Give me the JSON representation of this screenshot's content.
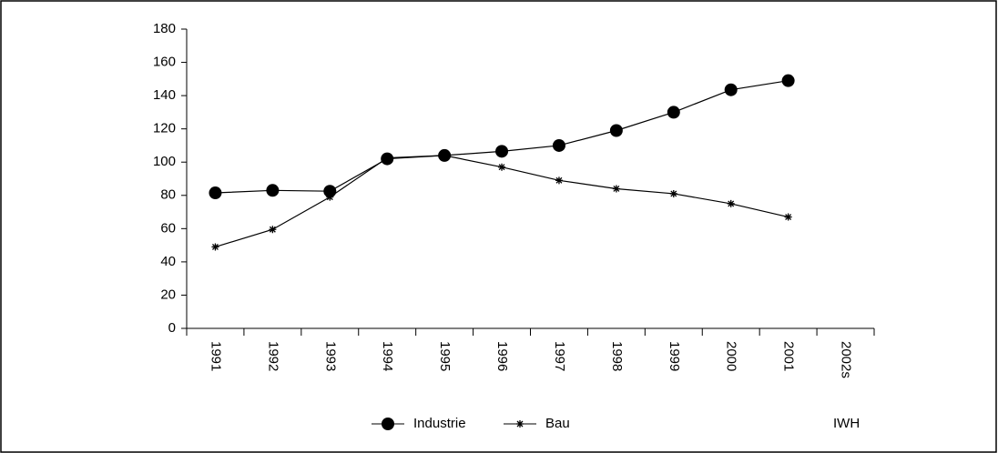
{
  "chart_data": {
    "type": "line",
    "categories": [
      "1991",
      "1992",
      "1993",
      "1994",
      "1995",
      "1996",
      "1997",
      "1998",
      "1999",
      "2000",
      "2001",
      "2002s"
    ],
    "series": [
      {
        "name": "Industrie",
        "color": "#000000",
        "marker": "circle",
        "values": [
          81.5,
          83,
          82.5,
          102,
          104,
          106.5,
          110,
          119,
          130,
          143.5,
          149,
          null
        ]
      },
      {
        "name": "Bau",
        "color": "#000000",
        "marker": "star",
        "values": [
          49,
          59.5,
          79,
          102.5,
          104,
          97,
          89,
          84,
          81,
          75,
          67,
          null
        ]
      }
    ],
    "ylim": [
      0,
      180
    ],
    "yticks": [
      0,
      20,
      40,
      60,
      80,
      100,
      120,
      140,
      160,
      180
    ],
    "grid": false,
    "legend": "bottom",
    "annotation": "IWH"
  }
}
